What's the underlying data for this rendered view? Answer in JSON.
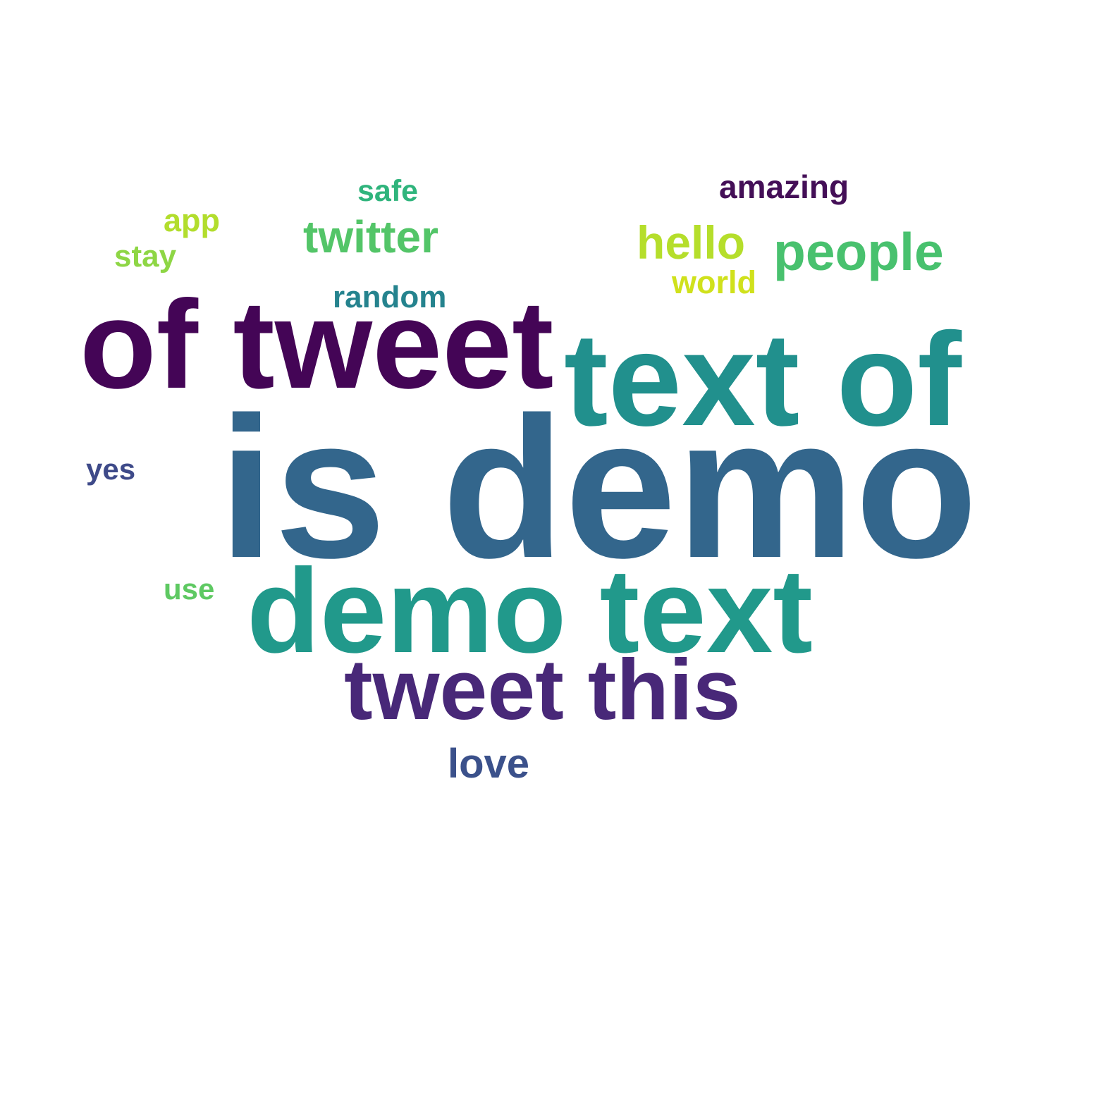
{
  "word_cloud": {
    "words": [
      {
        "id": "is-demo",
        "text": "is demo",
        "color": "#33668c"
      },
      {
        "id": "of-tweet",
        "text": "of tweet",
        "color": "#440556"
      },
      {
        "id": "text-of",
        "text": "text of",
        "color": "#21908d"
      },
      {
        "id": "demo-text",
        "text": "demo text",
        "color": "#21998b"
      },
      {
        "id": "tweet-this",
        "text": "tweet this",
        "color": "#482878"
      },
      {
        "id": "people",
        "text": "people",
        "color": "#48c16e"
      },
      {
        "id": "hello",
        "text": "hello",
        "color": "#b5de2b"
      },
      {
        "id": "twitter",
        "text": "twitter",
        "color": "#53c568"
      },
      {
        "id": "amazing",
        "text": "amazing",
        "color": "#440f57"
      },
      {
        "id": "safe",
        "text": "safe",
        "color": "#2fb47c"
      },
      {
        "id": "random",
        "text": "random",
        "color": "#25838e"
      },
      {
        "id": "world",
        "text": "world",
        "color": "#d0e11c"
      },
      {
        "id": "app",
        "text": "app",
        "color": "#b2dd2d"
      },
      {
        "id": "stay",
        "text": "stay",
        "color": "#8ed645"
      },
      {
        "id": "yes",
        "text": "yes",
        "color": "#3e4a89"
      },
      {
        "id": "use",
        "text": "use",
        "color": "#5ec962"
      },
      {
        "id": "love",
        "text": "love",
        "color": "#3b518b"
      }
    ]
  }
}
